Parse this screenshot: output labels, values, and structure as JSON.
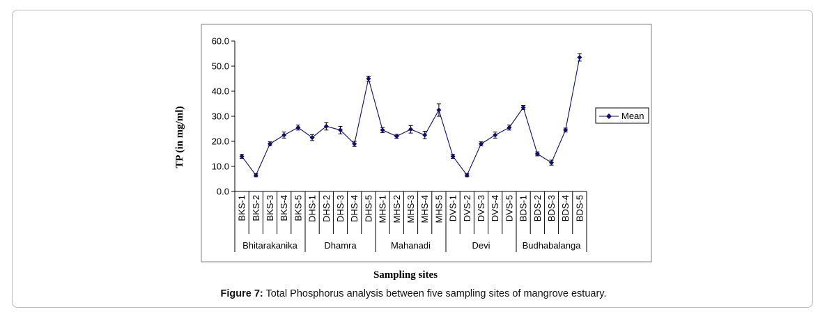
{
  "figure": {
    "label": "Figure 7:",
    "caption": " Total Phosphorus analysis between five sampling sites of mangrove estuary."
  },
  "colors": {
    "series": "#0d0d6b",
    "axis": "#000000",
    "plot_border": "#7f7f7f"
  },
  "chart_data": {
    "type": "line",
    "title": "",
    "xlabel": "Sampling sites",
    "ylabel": "TP (in mg/ml)",
    "ylim": [
      0,
      60
    ],
    "yticks": [
      0,
      10,
      20,
      30,
      40,
      50,
      60
    ],
    "ytick_labels": [
      "0.0",
      "10.0",
      "20.0",
      "30.0",
      "40.0",
      "50.0",
      "60.0"
    ],
    "grid": false,
    "legend_position": "right",
    "categories": [
      "BKS-1",
      "BKS-2",
      "BKS-3",
      "BKS-4",
      "BKS-5",
      "DHS-1",
      "DHS-2",
      "DHS-3",
      "DHS-4",
      "DHS-5",
      "MHS-1",
      "MHS-2",
      "MHS-3",
      "MHS-4",
      "MHS-5",
      "DVS-1",
      "DVS-2",
      "DVS-3",
      "DVS-4",
      "DVS-5",
      "BDS-1",
      "BDS-2",
      "BDS-3",
      "BDS-4",
      "BDS-5"
    ],
    "groups": [
      {
        "name": "Bhitarakanika",
        "count": 5
      },
      {
        "name": "Dhamra",
        "count": 5
      },
      {
        "name": "Mahanadi",
        "count": 5
      },
      {
        "name": "Devi",
        "count": 5
      },
      {
        "name": "Budhabalanga",
        "count": 5
      }
    ],
    "series": [
      {
        "name": "Mean",
        "values": [
          14.0,
          6.5,
          19.0,
          22.5,
          25.5,
          21.5,
          26.0,
          24.5,
          19.0,
          45.0,
          24.5,
          22.0,
          24.8,
          22.5,
          32.5,
          14.0,
          6.5,
          19.0,
          22.5,
          25.5,
          33.5,
          15.0,
          11.5,
          24.5,
          53.5
        ],
        "errors": [
          0.8,
          0.6,
          0.8,
          1.2,
          1.0,
          1.2,
          1.5,
          1.5,
          1.0,
          1.0,
          1.0,
          0.8,
          1.5,
          1.5,
          2.5,
          0.8,
          0.6,
          0.8,
          1.2,
          1.0,
          0.8,
          0.8,
          1.0,
          0.8,
          1.5
        ]
      }
    ]
  }
}
